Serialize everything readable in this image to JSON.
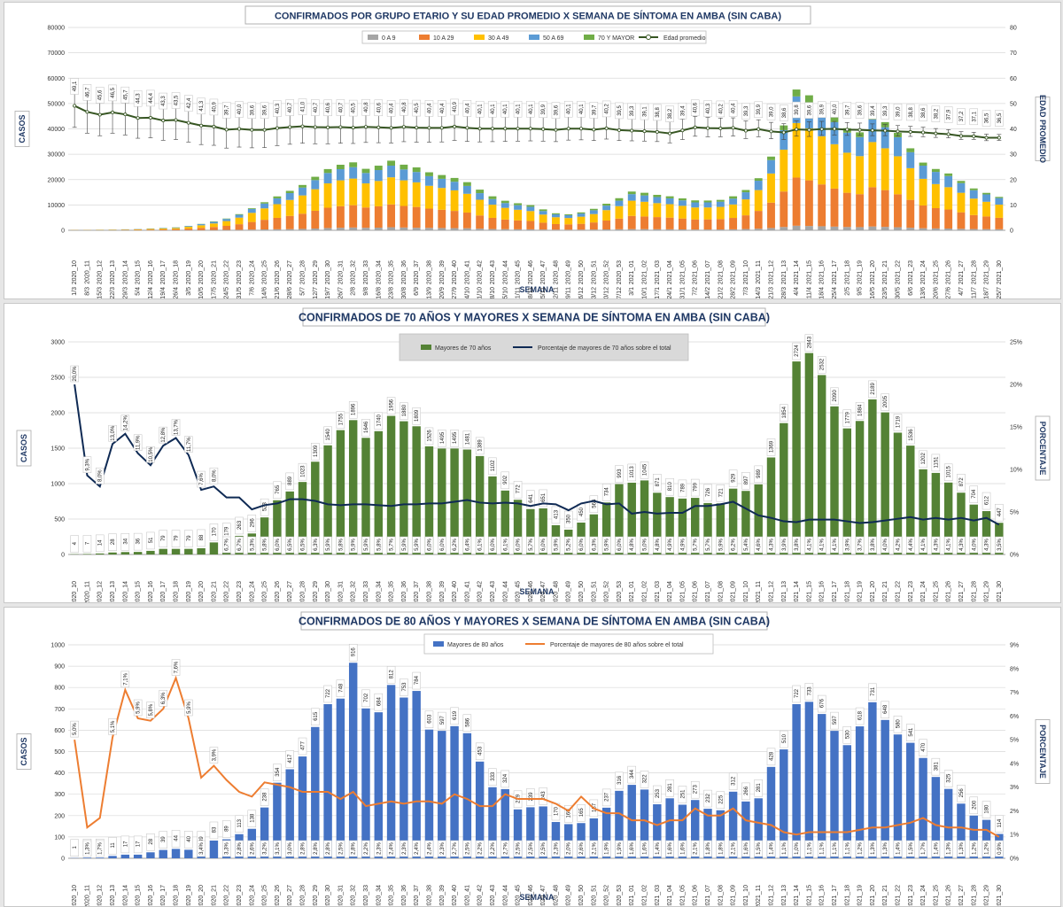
{
  "chart_data": [
    {
      "id": "chart1",
      "type": "bar",
      "stacked": true,
      "title": "CONFIRMADOS POR GRUPO ETARIO Y SU EDAD PROMEDIO X SEMANA DE SÍNTOMA EN AMBA (SIN CABA)",
      "xlabel": "SEMANA",
      "ylabel": "CASOS",
      "y2label": "EDAD PROMEDIO",
      "ylim": [
        0,
        80000
      ],
      "y2lim": [
        0,
        80
      ],
      "yticks": [
        "0",
        "10000",
        "20000",
        "30000",
        "40000",
        "50000",
        "60000",
        "70000",
        "80000"
      ],
      "y2ticks": [
        "0",
        "10",
        "20",
        "30",
        "40",
        "50",
        "60",
        "70",
        "80"
      ],
      "categories_week": [
        "2020_10",
        "2020_11",
        "2020_12",
        "2020_13",
        "2020_14",
        "2020_15",
        "2020_16",
        "2020_17",
        "2020_18",
        "2020_19",
        "2020_20",
        "2020_21",
        "2020_22",
        "2020_23",
        "2020_24",
        "2020_25",
        "2020_26",
        "2020_27",
        "2020_28",
        "2020_29",
        "2020_30",
        "2020_31",
        "2020_32",
        "2020_33",
        "2020_34",
        "2020_35",
        "2020_36",
        "2020_37",
        "2020_38",
        "2020_39",
        "2020_40",
        "2020_41",
        "2020_42",
        "2020_43",
        "2020_44",
        "2020_45",
        "2020_46",
        "2020_47",
        "2020_48",
        "2020_49",
        "2020_50",
        "2020_51",
        "2020_52",
        "2020_53",
        "2021_01",
        "2021_02",
        "2021_03",
        "2021_04",
        "2021_05",
        "2021_06",
        "2021_07",
        "2021_08",
        "2021_09",
        "2021_10",
        "2021_11",
        "2021_12",
        "2021_13",
        "2021_14",
        "2021_15",
        "2021_16",
        "2021_17",
        "2021_18",
        "2021_19",
        "2021_20",
        "2021_21",
        "2021_22",
        "2021_23",
        "2021_24",
        "2021_25",
        "2021_26",
        "2021_27",
        "2021_28",
        "2021_29",
        "2021_30"
      ],
      "categories_date": [
        "1/3",
        "8/3",
        "15/3",
        "22/3",
        "29/3",
        "5/4",
        "12/4",
        "19/4",
        "26/4",
        "3/5",
        "10/5",
        "17/5",
        "24/5",
        "31/5",
        "7/6",
        "14/6",
        "21/6",
        "28/6",
        "5/7",
        "12/7",
        "19/7",
        "26/7",
        "2/8",
        "9/8",
        "16/8",
        "23/8",
        "30/8",
        "6/9",
        "13/9",
        "20/9",
        "27/9",
        "4/10",
        "11/10",
        "18/10",
        "25/10",
        "1/11",
        "8/11",
        "15/11",
        "22/11",
        "29/11",
        "6/12",
        "13/12",
        "20/12",
        "27/12",
        "3/1",
        "10/1",
        "17/1",
        "24/1",
        "31/1",
        "7/2",
        "14/2",
        "21/2",
        "28/2",
        "7/3",
        "14/3",
        "21/3",
        "28/3",
        "4/4",
        "11/4",
        "18/4",
        "25/4",
        "2/5",
        "9/5",
        "16/5",
        "23/5",
        "30/5",
        "6/6",
        "13/6",
        "20/6",
        "27/6",
        "4/7",
        "11/7",
        "18/7",
        "25/7"
      ],
      "legend": [
        "0 A 9",
        "10 A 29",
        "30 A 49",
        "50 A 69",
        "70 Y MAYOR",
        "Edad promedio"
      ],
      "colors": [
        "#a5a5a5",
        "#ed7d31",
        "#ffc000",
        "#5b9bd5",
        "#70ad47",
        "#375623"
      ],
      "series": [
        {
          "name": "0 A 9",
          "values": [
            5,
            5,
            5,
            5,
            10,
            15,
            20,
            30,
            40,
            60,
            80,
            110,
            150,
            200,
            280,
            350,
            400,
            470,
            550,
            700,
            900,
            1000,
            1100,
            1000,
            1050,
            1200,
            1100,
            1000,
            950,
            900,
            850,
            800,
            650,
            500,
            450,
            400,
            380,
            300,
            250,
            240,
            260,
            300,
            350,
            420,
            470,
            450,
            410,
            400,
            350,
            300,
            310,
            330,
            380,
            500,
            650,
            900,
            1300,
            1800,
            1700,
            1600,
            1450,
            1300,
            1250,
            1500,
            1350,
            1200,
            1000,
            800,
            730,
            700,
            600,
            500,
            450,
            420
          ]
        },
        {
          "name": "10 A 29",
          "values": [
            50,
            60,
            70,
            90,
            120,
            180,
            250,
            300,
            400,
            600,
            900,
            1200,
            1600,
            2200,
            3000,
            3800,
            4500,
            5200,
            6000,
            7000,
            8000,
            8500,
            8800,
            8000,
            8400,
            9000,
            8500,
            8200,
            7600,
            7200,
            6800,
            6200,
            5200,
            4400,
            3800,
            3500,
            3300,
            2700,
            2200,
            2100,
            2300,
            2800,
            3500,
            4200,
            5200,
            5000,
            4800,
            4600,
            4300,
            4000,
            4000,
            4100,
            4500,
            5400,
            7000,
            10000,
            14000,
            19000,
            18000,
            16500,
            15000,
            13500,
            13000,
            15500,
            14500,
            13000,
            11000,
            9000,
            8000,
            7500,
            6500,
            5500,
            5000,
            4500
          ]
        },
        {
          "name": "30 A 49",
          "values": [
            60,
            70,
            90,
            110,
            150,
            200,
            280,
            350,
            450,
            700,
            1000,
            1400,
            1900,
            2600,
            3600,
            4500,
            5400,
            6300,
            7200,
            8500,
            9600,
            10200,
            10500,
            9500,
            10000,
            10700,
            10100,
            9700,
            9000,
            8600,
            8100,
            7400,
            6200,
            5200,
            4600,
            4200,
            3900,
            3200,
            2700,
            2500,
            2800,
            3300,
            4100,
            4900,
            6000,
            5800,
            5500,
            5300,
            5000,
            4700,
            4700,
            4800,
            5300,
            6300,
            8200,
            11500,
            16500,
            21500,
            20500,
            19000,
            17500,
            15800,
            15000,
            17800,
            16500,
            15000,
            12500,
            10500,
            9500,
            8800,
            7700,
            6500,
            5800,
            5200
          ]
        },
        {
          "name": "50 A 69",
          "values": [
            25,
            30,
            40,
            50,
            70,
            90,
            120,
            160,
            200,
            300,
            450,
            600,
            800,
            1100,
            1500,
            1900,
            2300,
            2700,
            3100,
            3600,
            4100,
            4400,
            4500,
            4100,
            4300,
            4600,
            4300,
            4100,
            3800,
            3600,
            3400,
            3100,
            2600,
            2200,
            1900,
            1800,
            1700,
            1400,
            1150,
            1100,
            1250,
            1500,
            1800,
            2150,
            2600,
            2500,
            2400,
            2300,
            2150,
            2000,
            2000,
            2050,
            2300,
            2800,
            3700,
            5300,
            7700,
            10500,
            10200,
            9400,
            8700,
            7900,
            7500,
            8900,
            8300,
            7500,
            6300,
            5200,
            4800,
            4400,
            3800,
            3300,
            2900,
            2600
          ]
        },
        {
          "name": "70 Y MAYOR",
          "values": [
            4,
            7,
            14,
            28,
            34,
            36,
            51,
            79,
            79,
            79,
            88,
            170,
            179,
            263,
            296,
            523,
            765,
            889,
            1023,
            1309,
            1540,
            1755,
            1896,
            1646,
            1740,
            1956,
            1880,
            1809,
            1526,
            1495,
            1495,
            1481,
            1389,
            1102,
            902,
            772,
            641,
            651,
            413,
            350,
            450,
            566,
            734,
            993,
            1013,
            1045,
            871,
            810,
            789,
            799,
            726,
            721,
            929,
            897,
            989,
            1369,
            1854,
            2724,
            2843,
            2532,
            2090,
            1779,
            1884,
            2189,
            2005,
            1719,
            1536,
            1202,
            1151,
            1015,
            872,
            704,
            612,
            447
          ]
        },
        {
          "name": "Edad promedio",
          "axis": "right",
          "values": [
            49.1,
            46.7,
            45.6,
            46.5,
            45.7,
            44.3,
            44.4,
            43.3,
            43.5,
            42.4,
            41.3,
            40.9,
            39.7,
            40.0,
            39.6,
            39.6,
            40.3,
            40.7,
            41.0,
            40.7,
            40.6,
            40.7,
            40.5,
            40.8,
            40.6,
            40.4,
            40.8,
            40.5,
            40.4,
            40.4,
            40.9,
            40.4,
            40.1,
            40.1,
            40.1,
            40.1,
            40.1,
            39.9,
            39.6,
            40.1,
            40.1,
            39.7,
            40.2,
            39.5,
            39.3,
            39.1,
            38.8,
            38.2,
            39.4,
            40.6,
            40.3,
            40.2,
            40.4,
            39.3,
            39.9,
            39.0,
            38.6,
            39.8,
            39.6,
            39.9,
            40.0,
            39.7,
            39.6,
            39.4,
            39.3,
            39.0,
            38.8,
            38.6,
            38.2,
            37.9,
            37.2,
            37.1,
            36.5,
            36.5
          ]
        }
      ]
    },
    {
      "id": "chart2",
      "type": "bar",
      "title": "CONFIRMADOS DE 70 AÑOS Y MAYORES X SEMANA DE SÍNTOMA EN AMBA (SIN CABA)",
      "xlabel": "SEMANA",
      "ylabel": "CASOS",
      "y2label": "PORCENTAJE",
      "ylim": [
        0,
        3000
      ],
      "y2lim": [
        0,
        25
      ],
      "yticks": [
        "0",
        "500",
        "1000",
        "1500",
        "2000",
        "2500",
        "3000"
      ],
      "y2ticks": [
        "0%",
        "5%",
        "10%",
        "15%",
        "20%",
        "25%"
      ],
      "legend": [
        "Mayores de 70 años",
        "Porcentaje de mayores de 70 años sobre el total"
      ],
      "colors": [
        "#548235",
        "#0f2a54"
      ],
      "series": [
        {
          "name": "Mayores de 70 años",
          "values": [
            4,
            7,
            14,
            28,
            34,
            36,
            51,
            79,
            79,
            79,
            88,
            170,
            179,
            263,
            296,
            523,
            765,
            889,
            1023,
            1309,
            1540,
            1755,
            1896,
            1646,
            1740,
            1956,
            1880,
            1809,
            1526,
            1495,
            1495,
            1481,
            1389,
            1102,
            902,
            772,
            641,
            651,
            413,
            350,
            450,
            566,
            734,
            993,
            1013,
            1045,
            871,
            810,
            789,
            799,
            726,
            721,
            929,
            897,
            989,
            1369,
            1854,
            2724,
            2843,
            2532,
            2090,
            1779,
            1884,
            2189,
            2005,
            1719,
            1536,
            1202,
            1151,
            1015,
            872,
            704,
            612,
            447
          ]
        },
        {
          "name": "Porcentaje de mayores de 70 años sobre el total",
          "axis": "right",
          "values": [
            20.0,
            9.3,
            8.0,
            13.0,
            14.2,
            11.9,
            10.5,
            12.8,
            13.7,
            11.7,
            7.6,
            8.0,
            6.7,
            6.7,
            5.3,
            5.8,
            6.0,
            6.5,
            6.5,
            6.3,
            5.9,
            5.8,
            5.9,
            5.9,
            5.8,
            5.7,
            5.9,
            5.9,
            6.0,
            6.0,
            6.2,
            6.4,
            6.1,
            6.0,
            6.1,
            6.0,
            5.7,
            6.0,
            5.9,
            5.2,
            6.0,
            6.3,
            5.9,
            6.0,
            4.8,
            5.0,
            4.8,
            4.9,
            4.9,
            5.7,
            5.7,
            5.9,
            6.2,
            5.4,
            4.6,
            4.3,
            3.9,
            3.8,
            4.1,
            4.1,
            4.1,
            3.9,
            3.7,
            3.8,
            4.0,
            4.2,
            4.4,
            4.1,
            4.3,
            4.1,
            4.3,
            4.0,
            4.3,
            3.5
          ]
        }
      ]
    },
    {
      "id": "chart3",
      "type": "bar",
      "title": "CONFIRMADOS DE 80 AÑOS Y MAYORES X SEMANA DE SÍNTOMA EN AMBA (SIN CABA)",
      "xlabel": "SEMANA",
      "ylabel": "CASOS",
      "y2label": "PORCENTAJE",
      "ylim": [
        0,
        1000
      ],
      "y2lim": [
        0,
        9
      ],
      "yticks": [
        "0",
        "100",
        "200",
        "300",
        "400",
        "500",
        "600",
        "700",
        "800",
        "900",
        "1000"
      ],
      "y2ticks": [
        "0%",
        "1%",
        "2%",
        "3%",
        "4%",
        "5%",
        "6%",
        "7%",
        "8%",
        "9%"
      ],
      "legend": [
        "Mayores de 80 años",
        "Porcentaje de mayores de 80 años sobre el total"
      ],
      "colors": [
        "#4472c4",
        "#ed7d31"
      ],
      "series": [
        {
          "name": "Mayores de 80 años",
          "values": [
            1,
            3,
            3,
            11,
            17,
            17,
            28,
            39,
            44,
            40,
            39,
            83,
            89,
            113,
            138,
            238,
            354,
            417,
            477,
            615,
            722,
            748,
            916,
            702,
            684,
            812,
            753,
            784,
            603,
            597,
            619,
            586,
            453,
            333,
            324,
            229,
            239,
            243,
            170,
            160,
            165,
            187,
            237,
            316,
            344,
            322,
            253,
            281,
            251,
            273,
            232,
            225,
            312,
            266,
            281,
            428,
            510,
            722,
            733,
            676,
            597,
            530,
            618,
            731,
            648,
            580,
            541,
            470,
            381,
            325,
            256,
            200,
            180,
            114
          ]
        },
        {
          "name": "Porcentaje de mayores de 80 años sobre el total",
          "axis": "right",
          "values": [
            5.0,
            1.3,
            1.7,
            5.1,
            7.1,
            5.9,
            5.8,
            6.3,
            7.6,
            5.9,
            3.4,
            3.9,
            3.3,
            2.8,
            2.6,
            3.2,
            3.1,
            3.0,
            2.8,
            2.8,
            2.8,
            2.5,
            2.8,
            2.2,
            2.3,
            2.4,
            2.3,
            2.4,
            2.4,
            2.3,
            2.7,
            2.5,
            2.2,
            2.2,
            2.7,
            2.5,
            2.5,
            2.5,
            2.3,
            2.0,
            2.6,
            2.1,
            1.9,
            1.9,
            1.6,
            1.6,
            1.4,
            1.6,
            1.6,
            2.1,
            1.8,
            1.8,
            2.1,
            1.6,
            1.5,
            1.4,
            1.1,
            1.0,
            1.1,
            1.1,
            1.1,
            1.1,
            1.2,
            1.3,
            1.3,
            1.4,
            1.5,
            1.7,
            1.4,
            1.3,
            1.3,
            1.2,
            1.2,
            0.9
          ]
        }
      ]
    }
  ]
}
